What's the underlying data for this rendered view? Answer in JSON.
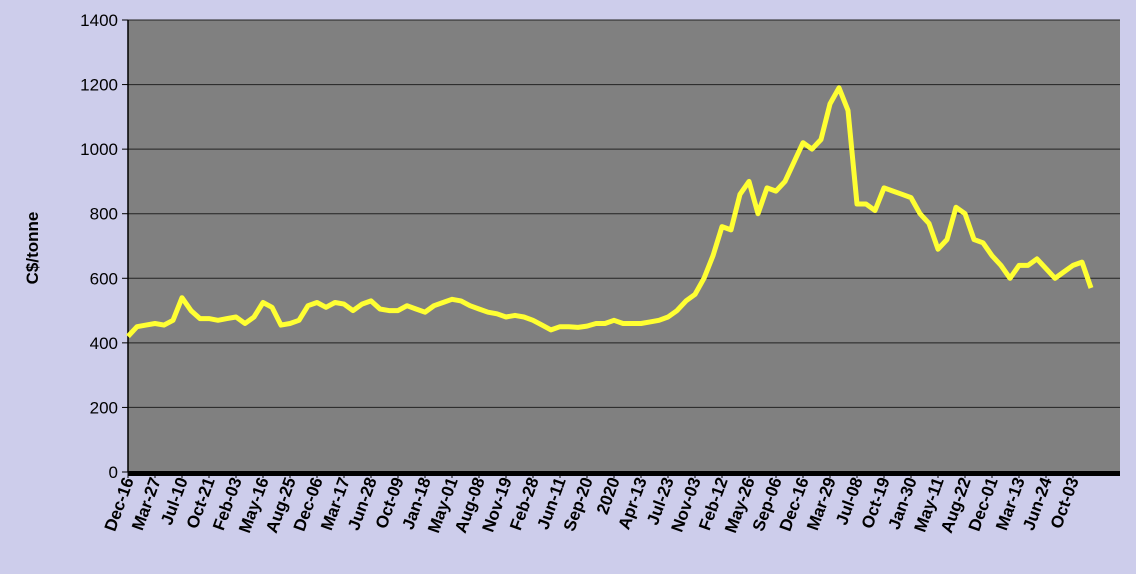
{
  "chart_data": {
    "type": "line",
    "ylabel": "C$/tonne",
    "categories": [
      "Dec-16",
      null,
      null,
      "Mar-27",
      null,
      null,
      "Jul-10",
      null,
      null,
      "Oct-21",
      null,
      null,
      "Feb-03",
      null,
      null,
      "May-16",
      null,
      null,
      "Aug-25",
      null,
      null,
      "Dec-06",
      null,
      null,
      "Mar-17",
      null,
      null,
      "Jun-28",
      null,
      null,
      "Oct-09",
      null,
      null,
      "Jan-18",
      null,
      null,
      "May-01",
      null,
      null,
      "Aug-08",
      null,
      null,
      "Nov-19",
      null,
      null,
      "Feb-28",
      null,
      null,
      "Jun-11",
      null,
      null,
      "Sep-20",
      null,
      null,
      "2020",
      null,
      null,
      "Apr-13",
      null,
      null,
      "Jul-23",
      null,
      null,
      "Nov-03",
      null,
      null,
      "Feb-12",
      null,
      null,
      "May-26",
      null,
      null,
      "Sep-06",
      null,
      null,
      "Dec-16",
      null,
      null,
      "Mar-29",
      null,
      null,
      "Jul-08",
      null,
      null,
      "Oct-19",
      null,
      null,
      "Jan-30",
      null,
      null,
      "May-11",
      null,
      null,
      "Aug-22",
      null,
      null,
      "Dec-01",
      null,
      null,
      "Mar-13",
      null,
      null,
      "Jun-24",
      null,
      null,
      "Oct-03",
      null,
      null
    ],
    "values": [
      420,
      450,
      455,
      460,
      455,
      470,
      540,
      500,
      475,
      475,
      470,
      475,
      480,
      460,
      480,
      525,
      510,
      455,
      460,
      470,
      515,
      525,
      510,
      525,
      520,
      500,
      520,
      530,
      505,
      500,
      500,
      515,
      505,
      495,
      515,
      525,
      535,
      530,
      515,
      505,
      495,
      490,
      480,
      485,
      480,
      470,
      455,
      440,
      450,
      450,
      448,
      452,
      460,
      460,
      470,
      460,
      460,
      460,
      465,
      470,
      480,
      500,
      530,
      550,
      600,
      670,
      760,
      750,
      860,
      900,
      800,
      880,
      870,
      900,
      960,
      1020,
      1000,
      1030,
      1140,
      1190,
      1120,
      830,
      830,
      810,
      880,
      870,
      860,
      850,
      800,
      770,
      690,
      720,
      820,
      800,
      720,
      710,
      670,
      640,
      600,
      640,
      640,
      660,
      630,
      600,
      620,
      640,
      650,
      570
    ],
    "color": "#ffff33",
    "ylim": [
      0,
      1400
    ],
    "yticks": [
      0,
      200,
      400,
      600,
      800,
      1000,
      1200,
      1400
    ],
    "grid": true
  }
}
